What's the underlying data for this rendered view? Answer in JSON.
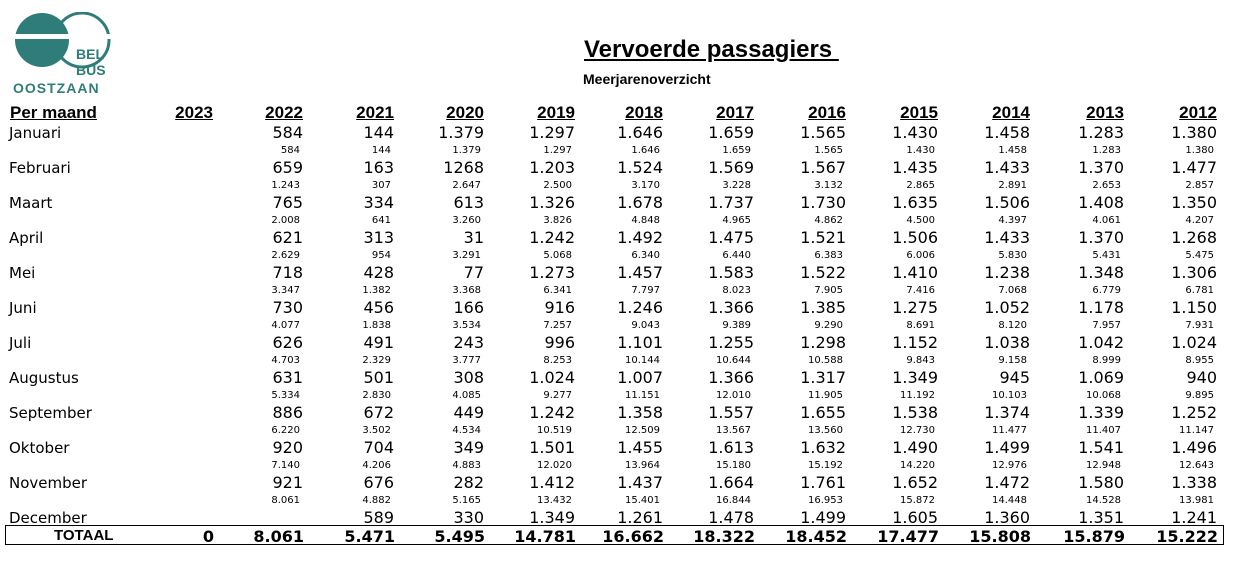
{
  "logo": {
    "line1": "BEL",
    "line2": "BUS",
    "line3": "OOSTZAAN",
    "color": "#2f7d7a"
  },
  "title": "Vervoerde passagiers ",
  "subtitle": "Meerjarenoverzicht",
  "header_label": "Per maand",
  "years": [
    "2023",
    "2022",
    "2021",
    "2020",
    "2019",
    "2018",
    "2017",
    "2016",
    "2015",
    "2014",
    "2013",
    "2012"
  ],
  "months": [
    {
      "name": "Januari",
      "values": [
        "",
        "584",
        "144",
        "1.379",
        "1.297",
        "1.646",
        "1.659",
        "1.565",
        "1.430",
        "1.458",
        "1.283",
        "1.380"
      ],
      "cumulative": [
        "",
        "584",
        "144",
        "1.379",
        "1.297",
        "1.646",
        "1.659",
        "1.565",
        "1.430",
        "1.458",
        "1.283",
        "1.380"
      ]
    },
    {
      "name": "Februari",
      "values": [
        "",
        "659",
        "163",
        "1268",
        "1.203",
        "1.524",
        "1.569",
        "1.567",
        "1.435",
        "1.433",
        "1.370",
        "1.477"
      ],
      "cumulative": [
        "",
        "1.243",
        "307",
        "2.647",
        "2.500",
        "3.170",
        "3.228",
        "3.132",
        "2.865",
        "2.891",
        "2.653",
        "2.857"
      ]
    },
    {
      "name": "Maart",
      "values": [
        "",
        "765",
        "334",
        "613",
        "1.326",
        "1.678",
        "1.737",
        "1.730",
        "1.635",
        "1.506",
        "1.408",
        "1.350"
      ],
      "cumulative": [
        "",
        "2.008",
        "641",
        "3.260",
        "3.826",
        "4.848",
        "4.965",
        "4.862",
        "4.500",
        "4.397",
        "4.061",
        "4.207"
      ]
    },
    {
      "name": "April",
      "values": [
        "",
        "621",
        "313",
        "31",
        "1.242",
        "1.492",
        "1.475",
        "1.521",
        "1.506",
        "1.433",
        "1.370",
        "1.268"
      ],
      "cumulative": [
        "",
        "2.629",
        "954",
        "3.291",
        "5.068",
        "6.340",
        "6.440",
        "6.383",
        "6.006",
        "5.830",
        "5.431",
        "5.475"
      ]
    },
    {
      "name": "Mei",
      "values": [
        "",
        "718",
        "428",
        "77",
        "1.273",
        "1.457",
        "1.583",
        "1.522",
        "1.410",
        "1.238",
        "1.348",
        "1.306"
      ],
      "cumulative": [
        "",
        "3.347",
        "1.382",
        "3.368",
        "6.341",
        "7.797",
        "8.023",
        "7.905",
        "7.416",
        "7.068",
        "6.779",
        "6.781"
      ]
    },
    {
      "name": "Juni",
      "values": [
        "",
        "730",
        "456",
        "166",
        "916",
        "1.246",
        "1.366",
        "1.385",
        "1.275",
        "1.052",
        "1.178",
        "1.150"
      ],
      "cumulative": [
        "",
        "4.077",
        "1.838",
        "3.534",
        "7.257",
        "9.043",
        "9.389",
        "9.290",
        "8.691",
        "8.120",
        "7.957",
        "7.931"
      ]
    },
    {
      "name": "Juli",
      "values": [
        "",
        "626",
        "491",
        "243",
        "996",
        "1.101",
        "1.255",
        "1.298",
        "1.152",
        "1.038",
        "1.042",
        "1.024"
      ],
      "cumulative": [
        "",
        "4.703",
        "2.329",
        "3.777",
        "8.253",
        "10.144",
        "10.644",
        "10.588",
        "9.843",
        "9.158",
        "8.999",
        "8.955"
      ]
    },
    {
      "name": "Augustus",
      "values": [
        "",
        "631",
        "501",
        "308",
        "1.024",
        "1.007",
        "1.366",
        "1.317",
        "1.349",
        "945",
        "1.069",
        "940"
      ],
      "cumulative": [
        "",
        "5.334",
        "2.830",
        "4.085",
        "9.277",
        "11.151",
        "12.010",
        "11.905",
        "11.192",
        "10.103",
        "10.068",
        "9.895"
      ]
    },
    {
      "name": "September",
      "values": [
        "",
        "886",
        "672",
        "449",
        "1.242",
        "1.358",
        "1.557",
        "1.655",
        "1.538",
        "1.374",
        "1.339",
        "1.252"
      ],
      "cumulative": [
        "",
        "6.220",
        "3.502",
        "4.534",
        "10.519",
        "12.509",
        "13.567",
        "13.560",
        "12.730",
        "11.477",
        "11.407",
        "11.147"
      ]
    },
    {
      "name": "Oktober",
      "values": [
        "",
        "920",
        "704",
        "349",
        "1.501",
        "1.455",
        "1.613",
        "1.632",
        "1.490",
        "1.499",
        "1.541",
        "1.496"
      ],
      "cumulative": [
        "",
        "7.140",
        "4.206",
        "4.883",
        "12.020",
        "13.964",
        "15.180",
        "15.192",
        "14.220",
        "12.976",
        "12.948",
        "12.643"
      ]
    },
    {
      "name": "November",
      "values": [
        "",
        "921",
        "676",
        "282",
        "1.412",
        "1.437",
        "1.664",
        "1.761",
        "1.652",
        "1.472",
        "1.580",
        "1.338"
      ],
      "cumulative": [
        "",
        "8.061",
        "4.882",
        "5.165",
        "13.432",
        "15.401",
        "16.844",
        "16.953",
        "15.872",
        "14.448",
        "14.528",
        "13.981"
      ]
    },
    {
      "name": "December",
      "values": [
        "",
        "",
        "589",
        "330",
        "1.349",
        "1.261",
        "1.478",
        "1.499",
        "1.605",
        "1.360",
        "1.351",
        "1.241"
      ],
      "cumulative": [
        "",
        "",
        "",
        "",
        "",
        "",
        "",
        "",
        "",
        "",
        "",
        ""
      ]
    }
  ],
  "total_label": "TOTAAL",
  "totals": [
    "0",
    "8.061",
    "5.471",
    "5.495",
    "14.781",
    "16.662",
    "18.322",
    "18.452",
    "17.477",
    "15.808",
    "15.879",
    "15.222"
  ]
}
